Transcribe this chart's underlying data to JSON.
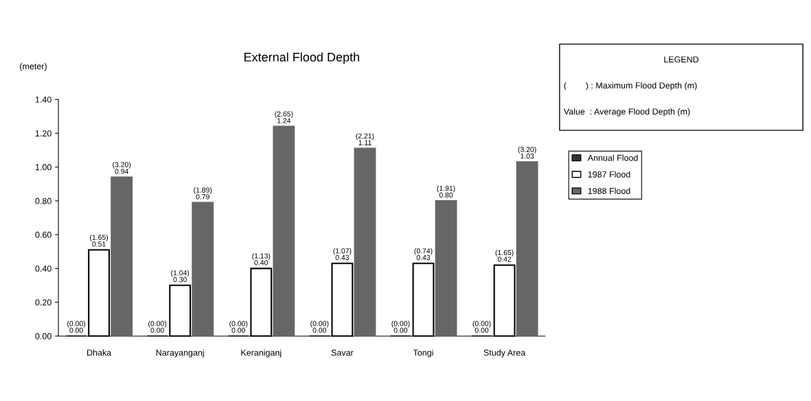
{
  "chart_data": {
    "type": "bar",
    "title": "External Flood Depth",
    "ylabel": "(meter)",
    "categories": [
      "Dhaka",
      "Narayanganj",
      "Keraniganj",
      "Savar",
      "Tongi",
      "Study Area"
    ],
    "series": [
      {
        "name": "Annual Flood",
        "color": "#333333",
        "values": [
          0,
          0,
          0,
          0,
          0,
          0
        ],
        "value_labels": [
          "(0.00)\n0.00",
          "(0.00)\n0.00",
          "(0.00)\n0.00",
          "(0.00)\n0.00",
          "(0.00)\n0.00",
          "(0.00)\n0.00"
        ]
      },
      {
        "name": "1987 Flood",
        "color": "#ffffff",
        "values": [
          0.51,
          0.3,
          0.4,
          0.43,
          0.43,
          0.42
        ],
        "value_labels": [
          "(1.65)\n0.51",
          "(1.04)\n0.30",
          "(1.13)\n0.40",
          "(1.07)\n0.43",
          "(0.74)\n0.43",
          "(1.65)\n0.42"
        ]
      },
      {
        "name": "1988 Flood",
        "color": "#666666",
        "values": [
          0.94,
          0.79,
          1.24,
          1.11,
          0.8,
          1.03
        ],
        "value_labels": [
          "(3.20)\n0.94",
          "(1.89)\n0.79",
          "(2.65)\n1.24",
          "(2.21)\n1.11",
          "(1.91)\n0.80",
          "(3.20)\n1.03"
        ]
      }
    ],
    "ylim": [
      0,
      1.4
    ],
    "yticks": [
      {
        "value": 0,
        "label": "0.00"
      },
      {
        "value": 0.2,
        "label": "0.20"
      },
      {
        "value": 0.4,
        "label": "0.40"
      },
      {
        "value": 0.6,
        "label": "0.60"
      },
      {
        "value": 0.8,
        "label": "0.80"
      },
      {
        "value": 1.0,
        "label": "1.00"
      },
      {
        "value": 1.2,
        "label": "1.20"
      },
      {
        "value": 1.4,
        "label": "1.40"
      }
    ],
    "legend": "right",
    "grid": false,
    "annotations": [
      "LEGEND",
      "(        ) : Maximum Flood Depth (m)",
      "Value  : Average Flood Depth (m)"
    ]
  }
}
